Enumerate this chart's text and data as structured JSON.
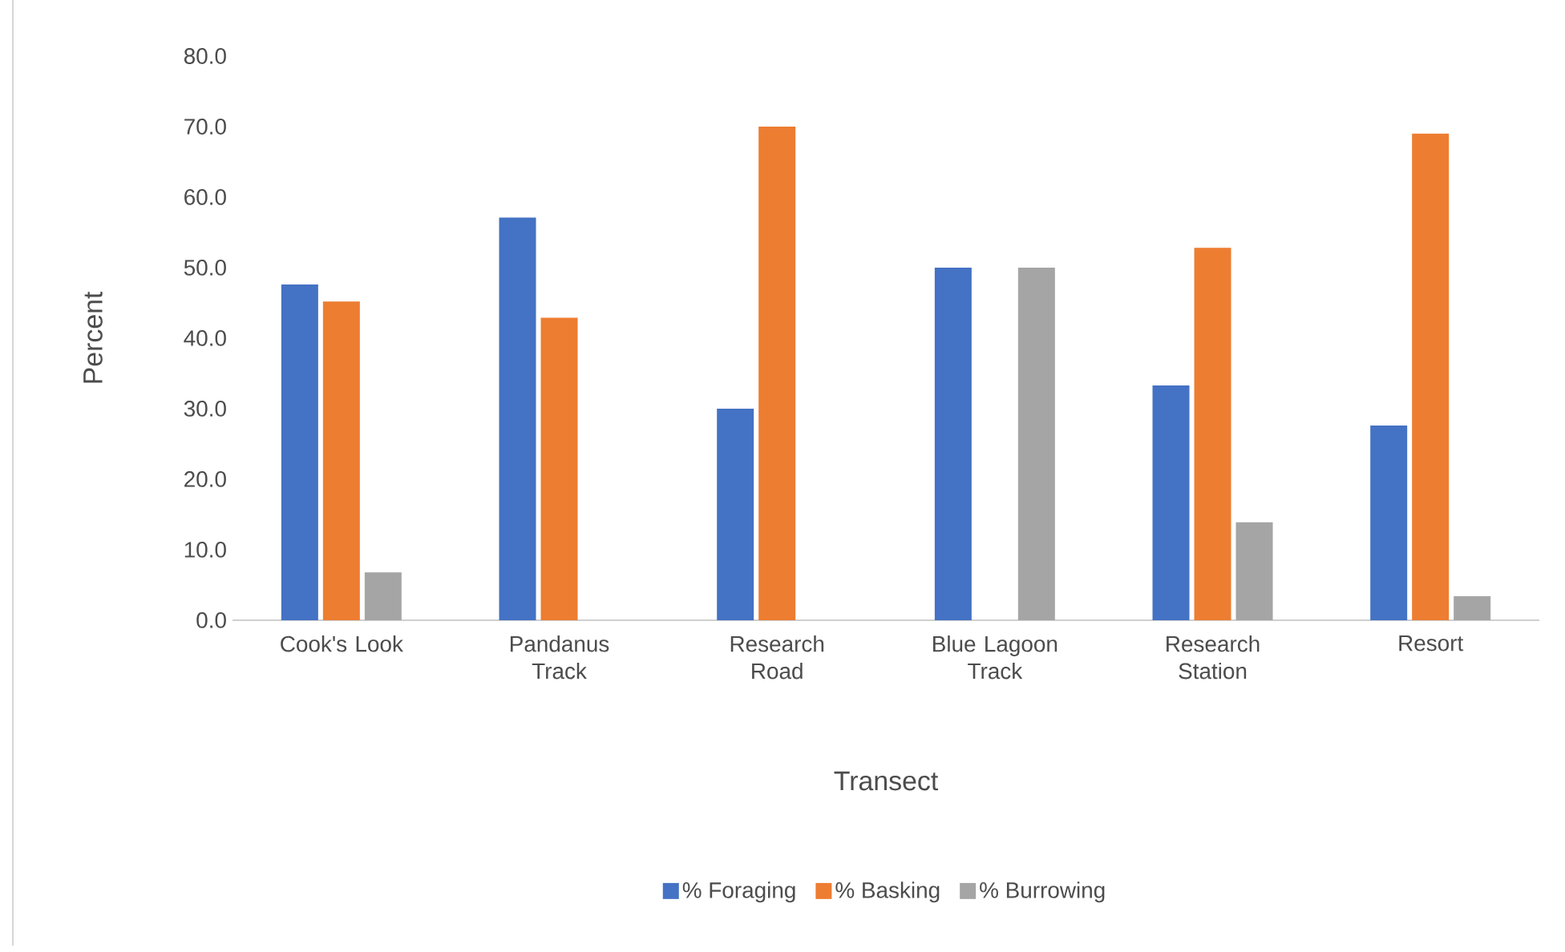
{
  "chart_data": {
    "type": "bar",
    "xlabel": "Transect",
    "ylabel": "Percent",
    "categories": [
      "Cook's Look",
      "Pandanus Track",
      "Research Road",
      "Blue Lagoon Track",
      "Research Station",
      "Resort"
    ],
    "series": [
      {
        "name": "% Foraging",
        "color": "#4472c4",
        "values": [
          47.6,
          57.1,
          30.0,
          50.0,
          33.3,
          27.6
        ]
      },
      {
        "name": "% Basking",
        "color": "#ed7d31",
        "values": [
          45.2,
          42.9,
          70.0,
          0,
          52.8,
          69.0
        ]
      },
      {
        "name": "% Burrowing",
        "color": "#a5a5a5",
        "values": [
          6.8,
          0,
          0,
          50.0,
          13.9,
          3.4
        ]
      }
    ],
    "ylim": [
      0,
      80
    ],
    "yticks": [
      {
        "value": 0,
        "label": "0.0"
      },
      {
        "value": 10,
        "label": "10.0"
      },
      {
        "value": 20,
        "label": "20.0"
      },
      {
        "value": 30,
        "label": "30.0"
      },
      {
        "value": 40,
        "label": "40.0"
      },
      {
        "value": 50,
        "label": "50.0"
      },
      {
        "value": 60,
        "label": "60.0"
      },
      {
        "value": 70,
        "label": "70.0"
      },
      {
        "value": 80,
        "label": "80.0"
      }
    ],
    "legend": "bottom"
  }
}
